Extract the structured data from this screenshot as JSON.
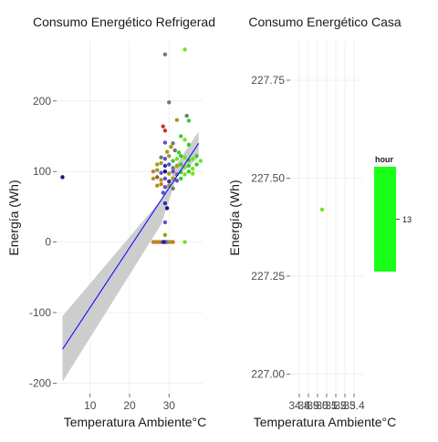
{
  "chart_data": [
    {
      "type": "scatter",
      "title": "Consumo Energético Refrigerad",
      "xlabel": "Temperatura Ambiente°C",
      "ylabel": "Energía (Wh)",
      "xlim": [
        1.5,
        38.5
      ],
      "ylim": [
        -215,
        285
      ],
      "x_ticks": [
        10,
        20,
        30
      ],
      "y_ticks": [
        -200,
        -100,
        0,
        100,
        200
      ],
      "grid": true,
      "trend_line": {
        "color": "#0000ff",
        "start": [
          3,
          -152
        ],
        "end": [
          37.5,
          140
        ],
        "band": {
          "color": "#c8c8c8",
          "upper": [
            [
              3,
              -105
            ],
            [
              28,
              60
            ],
            [
              32,
              111
            ],
            [
              37.5,
              157
            ]
          ],
          "lower": [
            [
              37.5,
              120
            ],
            [
              32,
              93
            ],
            [
              28,
              25
            ],
            [
              3,
              -198
            ]
          ]
        }
      },
      "colors": {
        "green": "#33cc33",
        "lime": "#7ae01a",
        "olive": "#a39a1e",
        "slate": "#6a7a7a",
        "purple": "#6a4cc4",
        "blue": "#2233bb",
        "navy": "#14148a",
        "red": "#d03030",
        "orange": "#d4782a",
        "brown": "#a05a2a"
      },
      "points": [
        {
          "x": 3,
          "y": 92,
          "c": "navy"
        },
        {
          "x": 30,
          "y": 198,
          "c": "slate"
        },
        {
          "x": 29,
          "y": 266,
          "c": "slate"
        },
        {
          "x": 34,
          "y": 273,
          "c": "lime"
        },
        {
          "x": 34.5,
          "y": 179,
          "c": "slate"
        },
        {
          "x": 35,
          "y": 172,
          "c": "green"
        },
        {
          "x": 28.5,
          "y": 164,
          "c": "red"
        },
        {
          "x": 29,
          "y": 158,
          "c": "red"
        },
        {
          "x": 32,
          "y": 173,
          "c": "olive"
        },
        {
          "x": 29,
          "y": 141,
          "c": "purple"
        },
        {
          "x": 31,
          "y": 140,
          "c": "slate"
        },
        {
          "x": 33,
          "y": 150,
          "c": "green"
        },
        {
          "x": 34,
          "y": 145,
          "c": "lime"
        },
        {
          "x": 35,
          "y": 138,
          "c": "green"
        },
        {
          "x": 29.5,
          "y": 128,
          "c": "olive"
        },
        {
          "x": 30.5,
          "y": 135,
          "c": "olive"
        },
        {
          "x": 31.5,
          "y": 130,
          "c": "slate"
        },
        {
          "x": 32.5,
          "y": 127,
          "c": "green"
        },
        {
          "x": 28,
          "y": 120,
          "c": "slate"
        },
        {
          "x": 29,
          "y": 118,
          "c": "purple"
        },
        {
          "x": 30,
          "y": 122,
          "c": "olive"
        },
        {
          "x": 31,
          "y": 115,
          "c": "green"
        },
        {
          "x": 32,
          "y": 118,
          "c": "lime"
        },
        {
          "x": 33,
          "y": 122,
          "c": "green"
        },
        {
          "x": 34,
          "y": 120,
          "c": "lime"
        },
        {
          "x": 35,
          "y": 116,
          "c": "green"
        },
        {
          "x": 36,
          "y": 118,
          "c": "lime"
        },
        {
          "x": 37,
          "y": 122,
          "c": "green"
        },
        {
          "x": 38,
          "y": 115,
          "c": "lime"
        },
        {
          "x": 27,
          "y": 110,
          "c": "olive"
        },
        {
          "x": 28,
          "y": 112,
          "c": "olive"
        },
        {
          "x": 29,
          "y": 108,
          "c": "blue"
        },
        {
          "x": 30,
          "y": 110,
          "c": "purple"
        },
        {
          "x": 31,
          "y": 105,
          "c": "slate"
        },
        {
          "x": 32,
          "y": 108,
          "c": "olive"
        },
        {
          "x": 33,
          "y": 110,
          "c": "green"
        },
        {
          "x": 34,
          "y": 106,
          "c": "lime"
        },
        {
          "x": 35,
          "y": 108,
          "c": "green"
        },
        {
          "x": 36,
          "y": 104,
          "c": "lime"
        },
        {
          "x": 37,
          "y": 110,
          "c": "green"
        },
        {
          "x": 26,
          "y": 100,
          "c": "orange"
        },
        {
          "x": 27,
          "y": 102,
          "c": "olive"
        },
        {
          "x": 28,
          "y": 98,
          "c": "purple"
        },
        {
          "x": 29,
          "y": 100,
          "c": "navy"
        },
        {
          "x": 30,
          "y": 97,
          "c": "olive"
        },
        {
          "x": 31,
          "y": 100,
          "c": "purple"
        },
        {
          "x": 32,
          "y": 96,
          "c": "slate"
        },
        {
          "x": 33,
          "y": 99,
          "c": "green"
        },
        {
          "x": 34,
          "y": 96,
          "c": "lime"
        },
        {
          "x": 35,
          "y": 100,
          "c": "green"
        },
        {
          "x": 36,
          "y": 97,
          "c": "lime"
        },
        {
          "x": 26,
          "y": 90,
          "c": "olive"
        },
        {
          "x": 27,
          "y": 92,
          "c": "brown"
        },
        {
          "x": 28,
          "y": 88,
          "c": "olive"
        },
        {
          "x": 29,
          "y": 90,
          "c": "purple"
        },
        {
          "x": 30,
          "y": 86,
          "c": "blue"
        },
        {
          "x": 31,
          "y": 90,
          "c": "olive"
        },
        {
          "x": 32,
          "y": 87,
          "c": "purple"
        },
        {
          "x": 33,
          "y": 90,
          "c": "green"
        },
        {
          "x": 27,
          "y": 80,
          "c": "olive"
        },
        {
          "x": 28,
          "y": 82,
          "c": "orange"
        },
        {
          "x": 29,
          "y": 78,
          "c": "purple"
        },
        {
          "x": 30,
          "y": 80,
          "c": "olive"
        },
        {
          "x": 31,
          "y": 76,
          "c": "slate"
        },
        {
          "x": 28.5,
          "y": 70,
          "c": "purple"
        },
        {
          "x": 29,
          "y": 55,
          "c": "blue"
        },
        {
          "x": 29.5,
          "y": 48,
          "c": "navy"
        },
        {
          "x": 29,
          "y": 28,
          "c": "purple"
        },
        {
          "x": 29,
          "y": 10,
          "c": "olive"
        },
        {
          "x": 26,
          "y": 0,
          "c": "orange"
        },
        {
          "x": 26.5,
          "y": 0,
          "c": "olive"
        },
        {
          "x": 27,
          "y": 0,
          "c": "orange"
        },
        {
          "x": 27.5,
          "y": 0,
          "c": "olive"
        },
        {
          "x": 28,
          "y": 0,
          "c": "orange"
        },
        {
          "x": 28.5,
          "y": 0,
          "c": "blue"
        },
        {
          "x": 29,
          "y": 0,
          "c": "navy"
        },
        {
          "x": 29.5,
          "y": 0,
          "c": "purple"
        },
        {
          "x": 30,
          "y": 0,
          "c": "olive"
        },
        {
          "x": 30.5,
          "y": 0,
          "c": "olive"
        },
        {
          "x": 31,
          "y": 0,
          "c": "orange"
        },
        {
          "x": 34,
          "y": 0,
          "c": "lime"
        }
      ]
    },
    {
      "type": "scatter",
      "title": "Consumo Energético Casa",
      "xlabel": "Temperatura Ambiente°C",
      "ylabel": "Energía (Wh)",
      "xlim": [
        34.7,
        35.5
      ],
      "ylim": [
        226.95,
        227.85
      ],
      "x_ticks": [
        34.8,
        34.9,
        35.0,
        35.1,
        35.2,
        35.3,
        35.4
      ],
      "x_tick_labels": [
        "34.8",
        "34.9",
        "35.0",
        "35.1",
        "35.2",
        "35.3",
        "35.4"
      ],
      "y_ticks": [
        227.0,
        227.25,
        227.5,
        227.75
      ],
      "y_tick_labels": [
        "227.00",
        "227.25",
        "227.50",
        "227.75"
      ],
      "grid": true,
      "points": [
        {
          "x": 35.05,
          "y": 227.42,
          "c": "lime"
        }
      ],
      "legend": {
        "title": "hour",
        "label": "13",
        "color": "#1aff1a",
        "position": "right"
      }
    }
  ]
}
